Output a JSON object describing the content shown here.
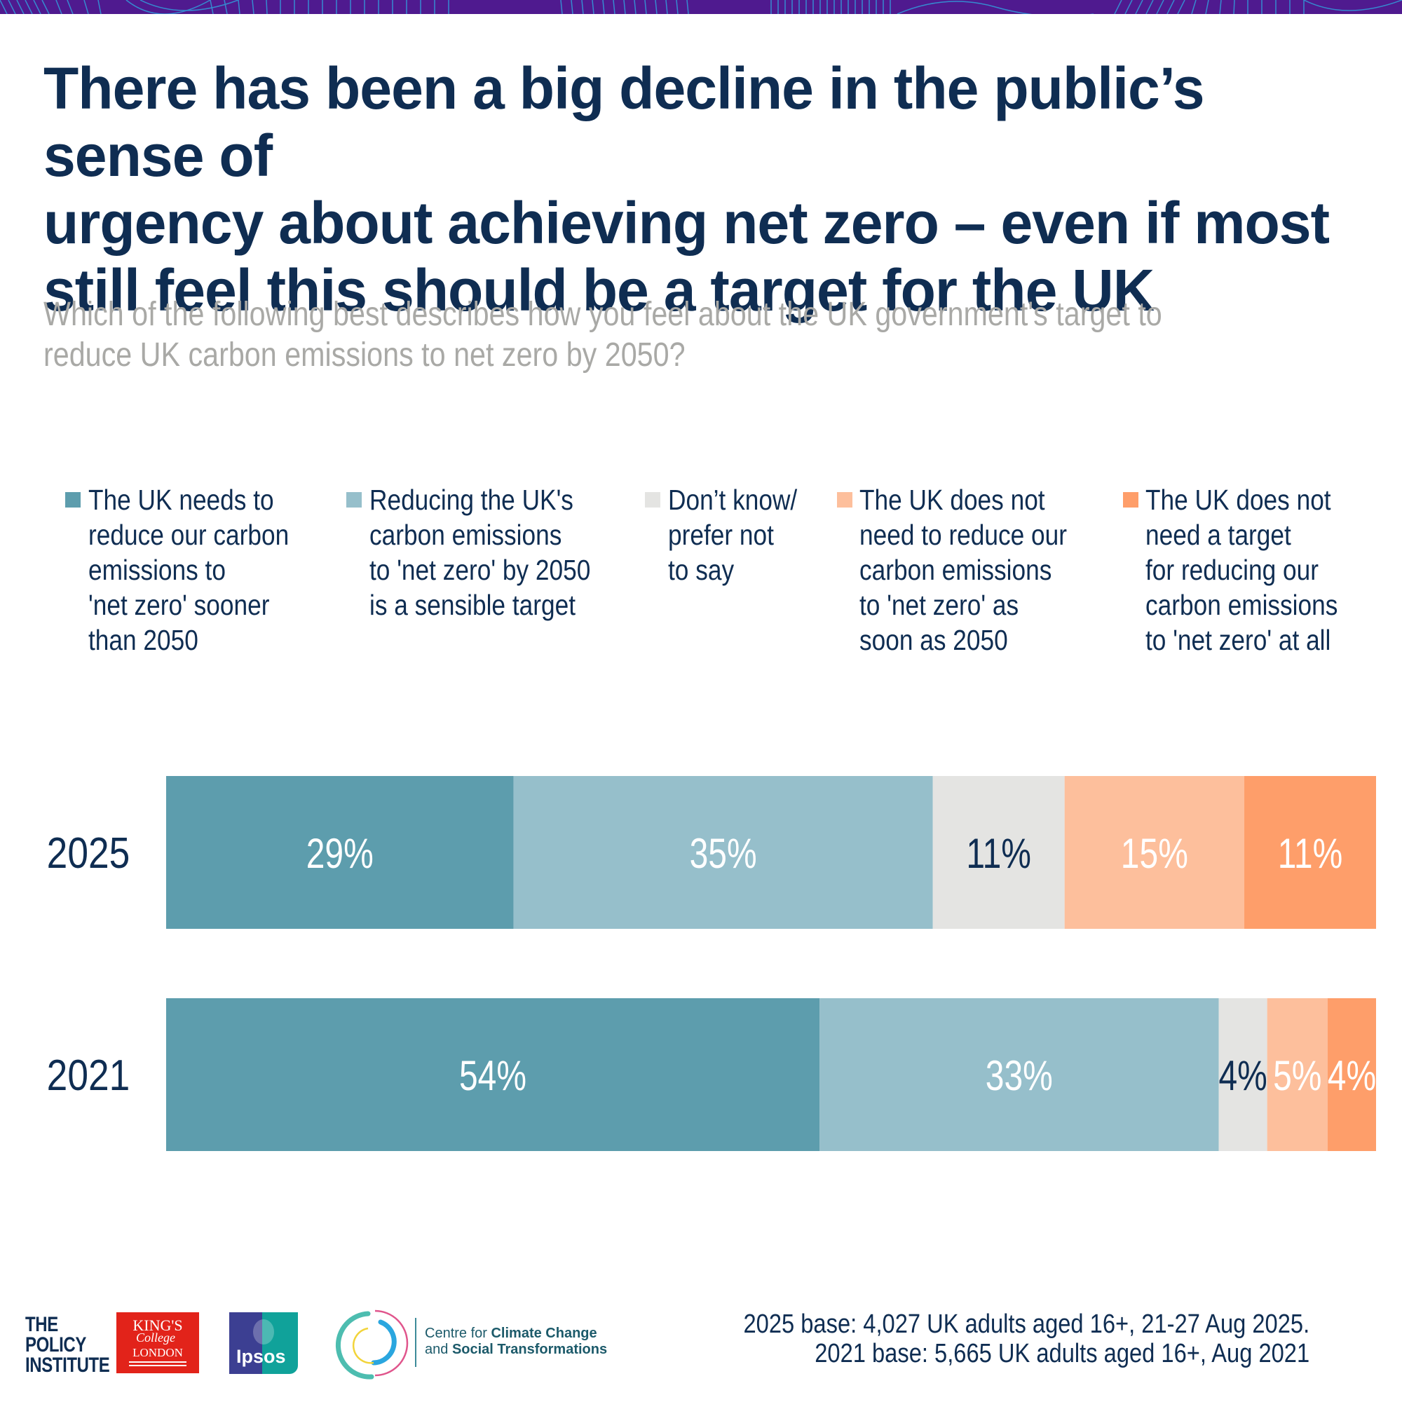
{
  "header": {
    "title_lines": [
      "There has been a big decline in the public’s sense of",
      "urgency about achieving net zero – even if most",
      "still feel this should be a target for the UK"
    ],
    "subtitle_lines": [
      "Which of the following best describes how you feel about the UK government's target to",
      "reduce UK carbon emissions to net zero by 2050?"
    ]
  },
  "chart_data": {
    "type": "bar",
    "orientation": "horizontal",
    "stacked": true,
    "title": "There has been a big decline in the public’s sense of urgency about achieving net zero – even if most still feel this should be a target for the UK",
    "subtitle": "Which of the following best describes how you feel about the UK government's target to reduce UK carbon emissions to net zero by 2050?",
    "categories": [
      "2025",
      "2021"
    ],
    "xlabel": "",
    "ylabel": "",
    "xlim": [
      0,
      100
    ],
    "unit": "%",
    "grid": false,
    "legend_position": "top",
    "series": [
      {
        "name": "The UK needs to reduce our carbon emissions to 'net zero' sooner than 2050",
        "legend_lines": [
          "The UK needs to",
          "reduce our carbon",
          "emissions to",
          "'net zero' sooner",
          "than 2050"
        ],
        "color": "#5d9dad",
        "label_color": "#ffffff",
        "values": [
          29,
          54
        ]
      },
      {
        "name": "Reducing the UK's carbon emissions to 'net zero' by 2050 is a sensible target",
        "legend_lines": [
          "Reducing the UK's",
          "carbon emissions",
          "to 'net zero' by 2050",
          "is a sensible target"
        ],
        "color": "#96bfcb",
        "label_color": "#ffffff",
        "values": [
          35,
          33
        ]
      },
      {
        "name": "Don’t know/ prefer not to say",
        "legend_lines": [
          "Don’t know/",
          "prefer not",
          "to say"
        ],
        "color": "#e4e4e2",
        "label_color": "#0f2d52",
        "values": [
          11,
          4
        ]
      },
      {
        "name": "The UK does not need to reduce our carbon emissions to 'net zero' as soon as 2050",
        "legend_lines": [
          "The UK does not",
          "need to reduce our",
          "carbon emissions",
          "to 'net zero' as",
          "soon as 2050"
        ],
        "color": "#fdbf9c",
        "label_color": "#ffffff",
        "values": [
          15,
          5
        ]
      },
      {
        "name": "The UK does not need a target for reducing our carbon emissions to 'net zero' at all",
        "legend_lines": [
          "The UK does not",
          "need a target",
          "for reducing our",
          "carbon emissions",
          "to 'net zero' at all"
        ],
        "color": "#fe9e6a",
        "label_color": "#ffffff",
        "values": [
          11,
          4
        ]
      }
    ]
  },
  "footer": {
    "base_notes": [
      "2025 base: 4,027 UK adults aged 16+, 21-27 Aug 2025.",
      "2021 base: 5,665 UK adults aged 16+, Aug 2021"
    ],
    "logos": {
      "policy_institute": [
        "THE",
        "POLICY",
        "INSTITUTE"
      ],
      "kings": {
        "line1": "KING'S",
        "line2": "College",
        "line3": "LONDON"
      },
      "ipsos": "Ipsos",
      "ccst": {
        "line1_plain": "Centre for ",
        "line1_bold": "Climate Change",
        "line2_plain": "and ",
        "line2_bold": "Social Transformations"
      }
    }
  },
  "colors": {
    "title": "#0f2d52",
    "subtitle": "#a9a9a6",
    "banner": "#4f1a8f"
  }
}
